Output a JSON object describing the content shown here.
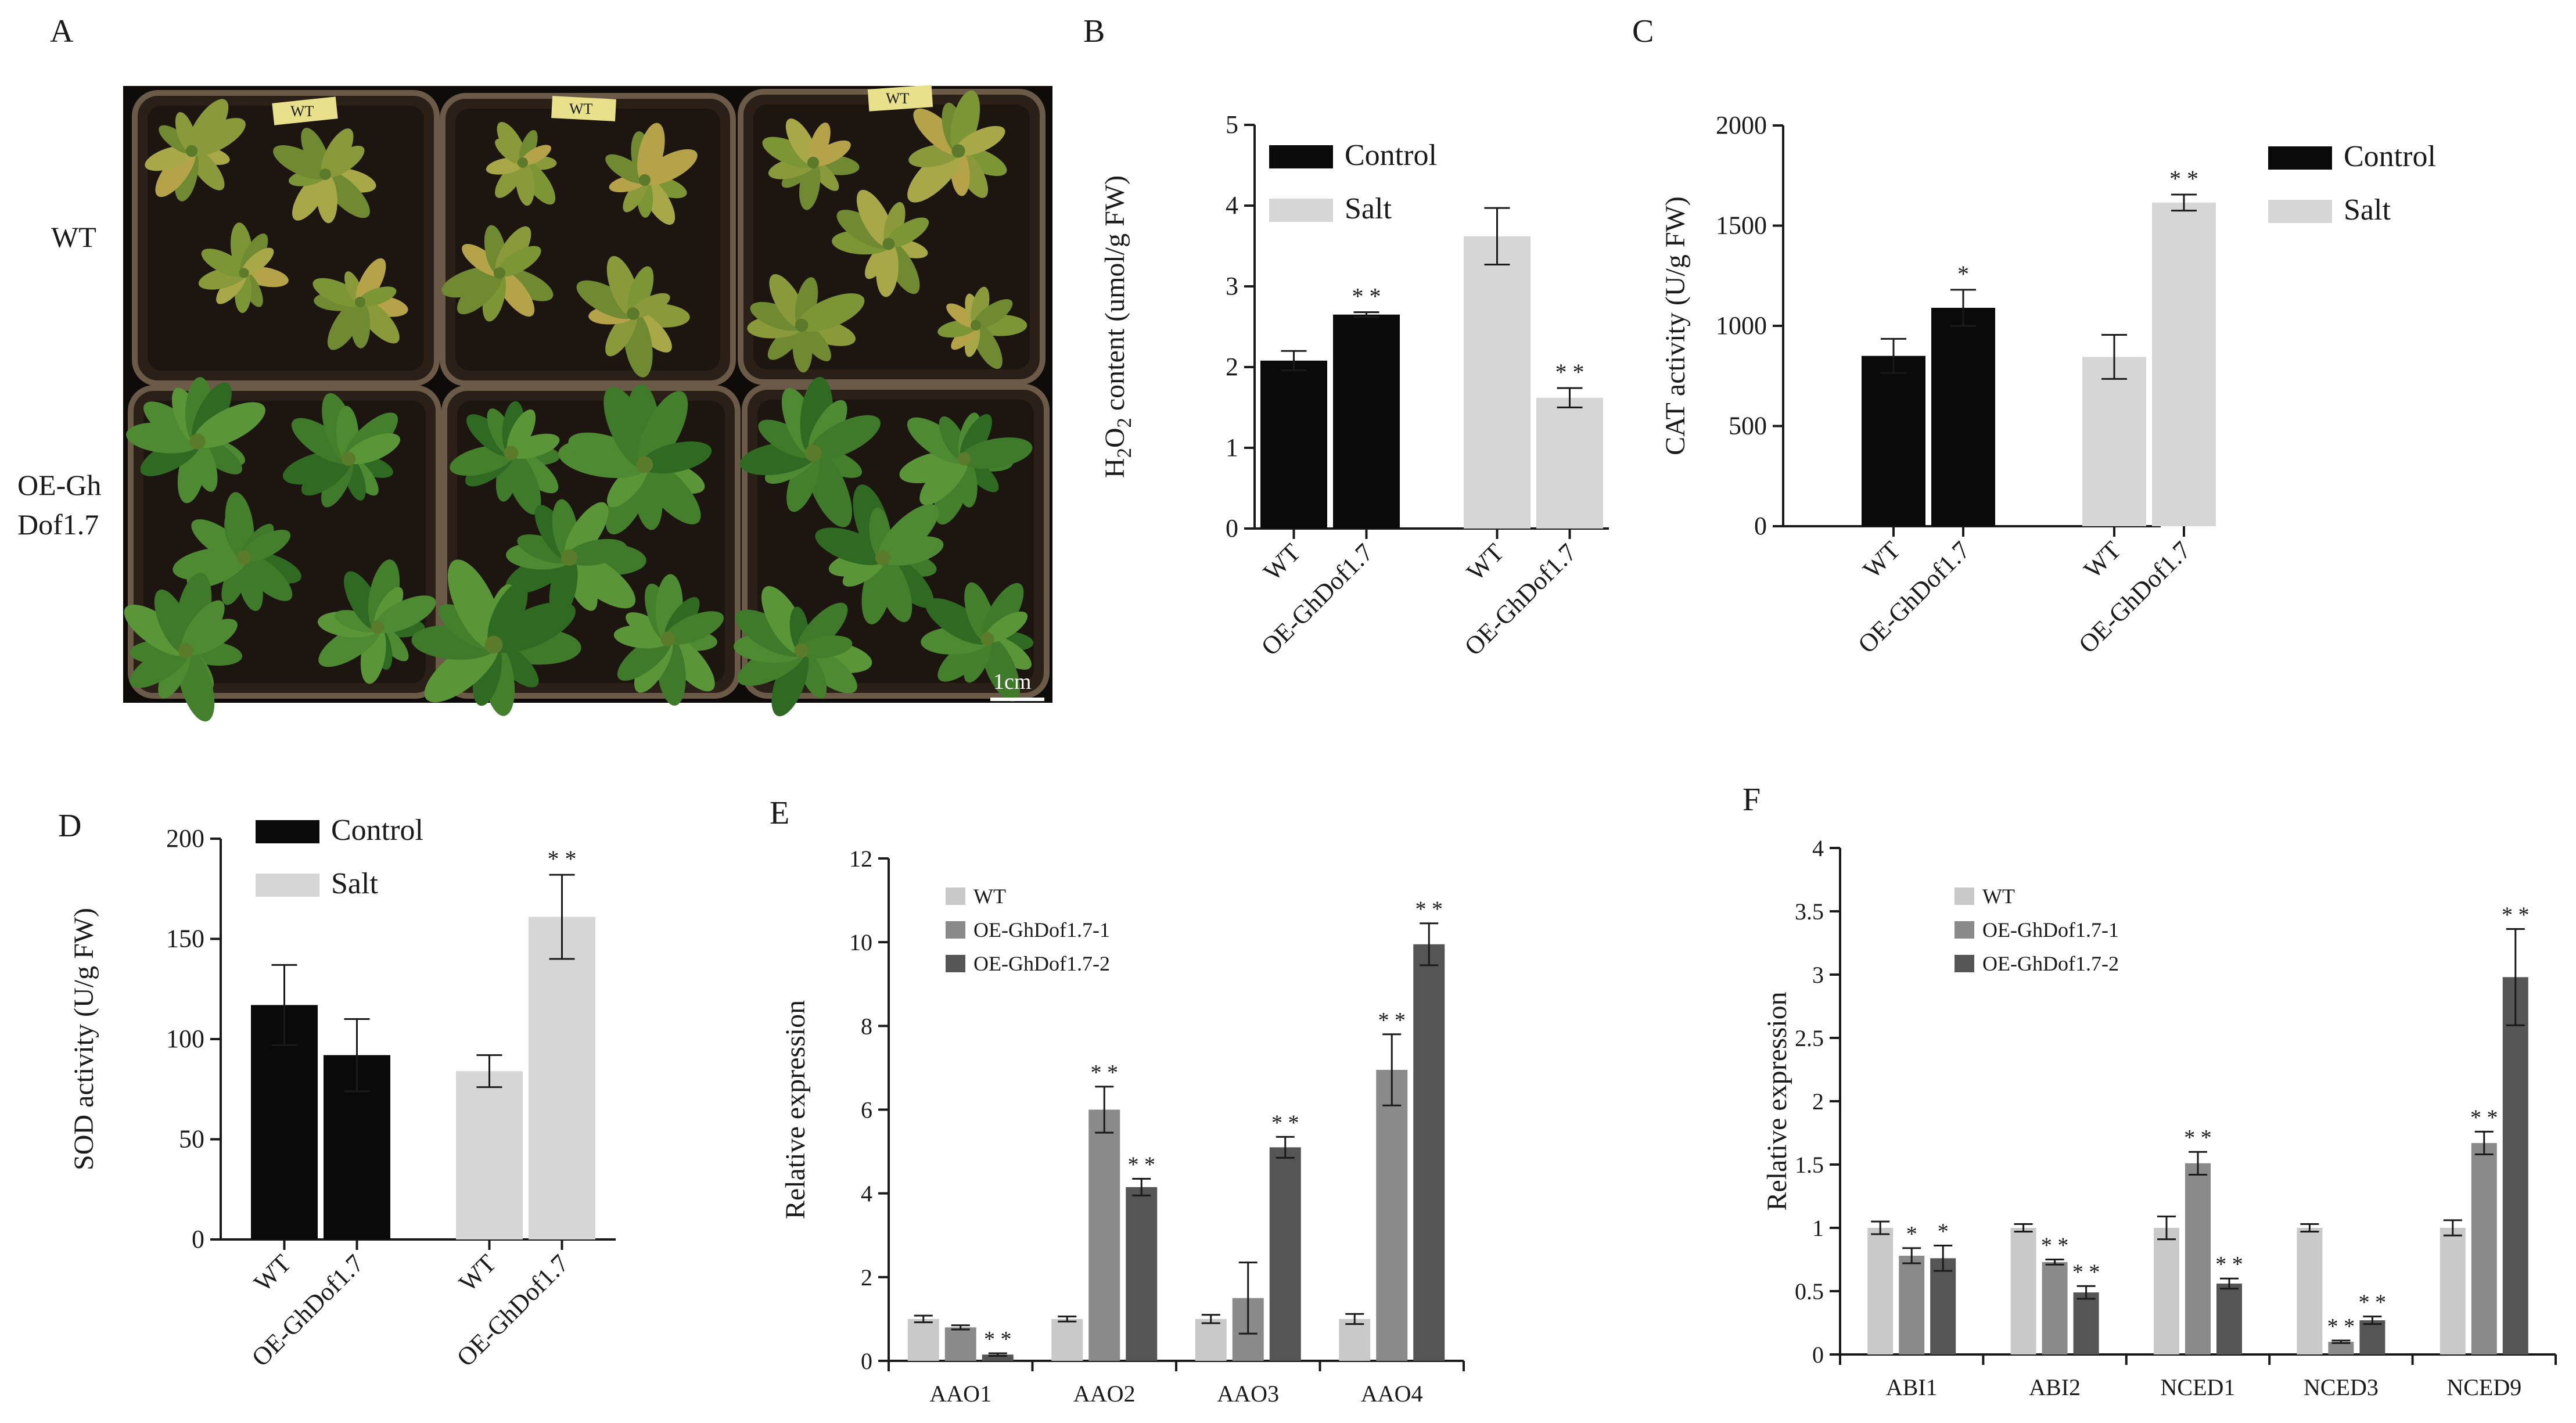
{
  "panels": {
    "A": {
      "letter": "A",
      "row_labels": [
        "WT",
        "OE-Gh",
        "Dof1.7"
      ],
      "scale_bar": "1cm",
      "pot_labels": [
        "WT",
        "WT",
        "WT"
      ]
    }
  },
  "colors": {
    "control": "#0a0a0a",
    "salt": "#d6d6d6",
    "wt": "#c9c9c9",
    "oe1": "#8a8a8a",
    "oe2": "#555555"
  },
  "chart_data": [
    {
      "id": "B",
      "letter": "B",
      "type": "bar",
      "ylabel_pre": "H",
      "ylabel_sub1": "2",
      "ylabel_mid": "O",
      "ylabel_sub2": "2",
      "ylabel_post": " content (umol/g FW)",
      "ylim": [
        0,
        5
      ],
      "yticks": [
        0,
        1,
        2,
        3,
        4,
        5
      ],
      "legend": [
        "Control",
        "Salt"
      ],
      "groups": [
        "Control",
        "Salt"
      ],
      "categories": [
        "WT",
        "OE-GhDof1.7"
      ],
      "series": [
        {
          "name": "Control",
          "values": [
            2.08,
            2.65
          ],
          "errors": [
            0.12,
            0.03
          ],
          "sig": [
            "",
            "**"
          ]
        },
        {
          "name": "Salt",
          "values": [
            3.62,
            1.62
          ],
          "errors": [
            0.35,
            0.12
          ],
          "sig": [
            "",
            "**"
          ]
        }
      ]
    },
    {
      "id": "C",
      "letter": "C",
      "type": "bar",
      "ylabel": "CAT activity (U/g FW)",
      "ylim": [
        0,
        2000
      ],
      "yticks": [
        0,
        500,
        1000,
        1500,
        2000
      ],
      "legend": [
        "Control",
        "Salt"
      ],
      "groups": [
        "Control",
        "Salt"
      ],
      "categories": [
        "WT",
        "OE-GhDof1.7"
      ],
      "series": [
        {
          "name": "Control",
          "values": [
            850,
            1090
          ],
          "errors": [
            85,
            90
          ],
          "sig": [
            "",
            "*"
          ]
        },
        {
          "name": "Salt",
          "values": [
            845,
            1615
          ],
          "errors": [
            110,
            40
          ],
          "sig": [
            "",
            "**"
          ]
        }
      ]
    },
    {
      "id": "D",
      "letter": "D",
      "type": "bar",
      "ylabel": "SOD activity (U/g FW)",
      "ylim": [
        0,
        200
      ],
      "yticks": [
        0,
        50,
        100,
        150,
        200
      ],
      "legend": [
        "Control",
        "Salt"
      ],
      "groups": [
        "Control",
        "Salt"
      ],
      "categories": [
        "WT",
        "OE-GhDof1.7"
      ],
      "series": [
        {
          "name": "Control",
          "values": [
            117,
            92
          ],
          "errors": [
            20,
            18
          ],
          "sig": [
            "",
            ""
          ]
        },
        {
          "name": "Salt",
          "values": [
            84,
            161
          ],
          "errors": [
            8,
            21
          ],
          "sig": [
            "",
            "**"
          ]
        }
      ]
    },
    {
      "id": "E",
      "letter": "E",
      "type": "bar",
      "ylabel": "Relative expression",
      "ylim": [
        0,
        12
      ],
      "yticks": [
        0,
        2,
        4,
        6,
        8,
        10,
        12
      ],
      "legend": [
        "WT",
        "OE-GhDof1.7-1",
        "OE-GhDof1.7-2"
      ],
      "categories": [
        "AAO1",
        "AAO2",
        "AAO3",
        "AAO4"
      ],
      "series": [
        {
          "name": "WT",
          "values": [
            1.0,
            1.0,
            1.0,
            1.0
          ],
          "errors": [
            0.08,
            0.06,
            0.1,
            0.12
          ],
          "sig": [
            "",
            "",
            "",
            ""
          ]
        },
        {
          "name": "OE-GhDof1.7-1",
          "values": [
            0.8,
            6.0,
            1.5,
            6.95
          ],
          "errors": [
            0.05,
            0.55,
            0.85,
            0.85
          ],
          "sig": [
            "",
            "**",
            "",
            "**"
          ]
        },
        {
          "name": "OE-GhDof1.7-2",
          "values": [
            0.15,
            4.15,
            5.1,
            9.95
          ],
          "errors": [
            0.03,
            0.2,
            0.25,
            0.5
          ],
          "sig": [
            "**",
            "**",
            "**",
            "**"
          ]
        }
      ]
    },
    {
      "id": "F",
      "letter": "F",
      "type": "bar",
      "ylabel": "Relative expression",
      "ylim": [
        0,
        4
      ],
      "yticks": [
        0,
        0.5,
        1,
        1.5,
        2,
        2.5,
        3,
        3.5,
        4
      ],
      "ytick_labels": [
        "0",
        "0.5",
        "1",
        "1.5",
        "2",
        "2.5",
        "3",
        "3.5",
        "4"
      ],
      "legend": [
        "WT",
        "OE-GhDof1.7-1",
        "OE-GhDof1.7-2"
      ],
      "categories": [
        "ABI1",
        "ABI2",
        "NCED1",
        "NCED3",
        "NCED9"
      ],
      "series": [
        {
          "name": "WT",
          "values": [
            1.0,
            1.0,
            1.0,
            1.0,
            1.0
          ],
          "errors": [
            0.05,
            0.03,
            0.09,
            0.03,
            0.06
          ],
          "sig": [
            "",
            "",
            "",
            "",
            ""
          ]
        },
        {
          "name": "OE-GhDof1.7-1",
          "values": [
            0.78,
            0.73,
            1.51,
            0.1,
            1.67
          ],
          "errors": [
            0.06,
            0.02,
            0.09,
            0.01,
            0.09
          ],
          "sig": [
            "*",
            "**",
            "**",
            "**",
            "**"
          ]
        },
        {
          "name": "OE-GhDof1.7-2",
          "values": [
            0.76,
            0.49,
            0.56,
            0.27,
            2.98
          ],
          "errors": [
            0.1,
            0.05,
            0.04,
            0.03,
            0.38
          ],
          "sig": [
            "*",
            "**",
            "**",
            "**",
            "**"
          ]
        }
      ]
    }
  ]
}
